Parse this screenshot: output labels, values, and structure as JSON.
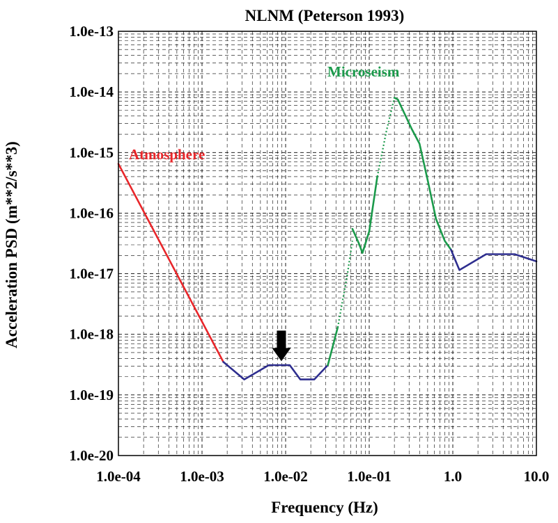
{
  "chart_data": {
    "type": "line",
    "title": "NLNM (Peterson 1993)",
    "xlabel": "Frequency (Hz)",
    "ylabel": "Acceleration PSD (m**2/s**3)",
    "x_scale": "log",
    "y_scale": "log",
    "xlim": [
      0.0001,
      10
    ],
    "ylim": [
      1e-20,
      1e-13
    ],
    "grid": true,
    "x_ticks": [
      {
        "value": 0.0001,
        "label": "1.0e-04"
      },
      {
        "value": 0.001,
        "label": "1.0e-03"
      },
      {
        "value": 0.01,
        "label": "1.0e-02"
      },
      {
        "value": 0.1,
        "label": "1.0e-01"
      },
      {
        "value": 1,
        "label": "1.0"
      },
      {
        "value": 10,
        "label": "10.0"
      }
    ],
    "y_ticks": [
      {
        "value": 1e-13,
        "label": "1.0e-13"
      },
      {
        "value": 1e-14,
        "label": "1.0e-14"
      },
      {
        "value": 1e-15,
        "label": "1.0e-15"
      },
      {
        "value": 1e-16,
        "label": "1.0e-16"
      },
      {
        "value": 1e-17,
        "label": "1.0e-17"
      },
      {
        "value": 1e-18,
        "label": "1.0e-18"
      },
      {
        "value": 1e-19,
        "label": "1.0e-19"
      },
      {
        "value": 1e-20,
        "label": "1.0e-20"
      }
    ],
    "series": [
      {
        "color": "#e8262a",
        "dashed": false,
        "points": [
          [
            0.0001,
            6.5e-16
          ],
          [
            0.0018,
            3.5e-19
          ]
        ]
      },
      {
        "color": "#2e2e8f",
        "dashed": false,
        "points": [
          [
            0.0018,
            3.5e-19
          ],
          [
            0.0032,
            1.8e-19
          ],
          [
            0.0063,
            3.1e-19
          ],
          [
            0.0089,
            3.1e-19
          ],
          [
            0.0112,
            3.1e-19
          ],
          [
            0.015,
            1.8e-19
          ],
          [
            0.022,
            1.8e-19
          ],
          [
            0.032,
            3.1e-19
          ]
        ]
      },
      {
        "color": "#1b9a4b",
        "dashed": false,
        "points": [
          [
            0.032,
            3.1e-19
          ],
          [
            0.042,
            1.3e-18
          ]
        ]
      },
      {
        "color": "#1b9a4b",
        "dashed": true,
        "points": [
          [
            0.042,
            1.3e-18
          ],
          [
            0.055,
            1e-17
          ],
          [
            0.063,
            3.5e-17
          ]
        ]
      },
      {
        "color": "#1b9a4b",
        "dashed": false,
        "points": [
          [
            0.063,
            5.5e-17
          ],
          [
            0.075,
            3.2e-17
          ],
          [
            0.083,
            2.2e-17
          ],
          [
            0.1,
            5e-17
          ],
          [
            0.125,
            4e-16
          ]
        ]
      },
      {
        "color": "#1b9a4b",
        "dashed": true,
        "points": [
          [
            0.125,
            4e-16
          ],
          [
            0.16,
            2.2e-15
          ],
          [
            0.2,
            8e-15
          ]
        ]
      },
      {
        "color": "#1b9a4b",
        "dashed": false,
        "points": [
          [
            0.2,
            8e-15
          ],
          [
            0.22,
            7.5e-15
          ],
          [
            0.32,
            2.5e-15
          ],
          [
            0.4,
            1.4e-15
          ],
          [
            0.5,
            3.5e-16
          ],
          [
            0.63,
            8e-17
          ],
          [
            0.8,
            3.5e-17
          ],
          [
            0.95,
            2.5e-17
          ]
        ]
      },
      {
        "color": "#2e2e8f",
        "dashed": false,
        "points": [
          [
            0.95,
            2.5e-17
          ],
          [
            1.2,
            1.15e-17
          ],
          [
            2.5,
            2.1e-17
          ],
          [
            5.5,
            2.1e-17
          ],
          [
            10,
            1.6e-17
          ]
        ]
      }
    ],
    "annotations": [
      {
        "text": "Atmosphere",
        "color": "#e8262a"
      },
      {
        "text": "Microseism",
        "color": "#1b9a4b"
      }
    ],
    "arrow": {
      "x": 0.0089,
      "y_from": 1.15e-18,
      "y_to": 3.6e-19,
      "direction": "down"
    }
  }
}
